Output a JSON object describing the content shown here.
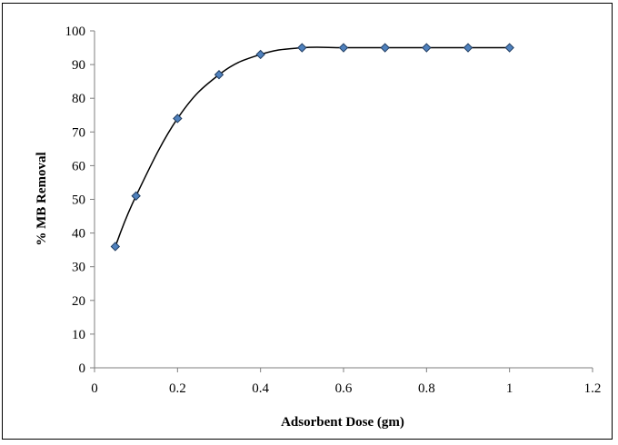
{
  "chart_data": {
    "type": "line",
    "title": "",
    "xlabel": "Adsorbent Dose (gm)",
    "ylabel": "% MB Removal",
    "xlim": [
      0,
      1.2
    ],
    "ylim": [
      0,
      100
    ],
    "x_ticks": [
      0,
      0.2,
      0.4,
      0.6,
      0.8,
      1,
      1.2
    ],
    "x_tick_labels": [
      "0",
      "0.2",
      "0.4",
      "0.6",
      "0.8",
      "1",
      "1.2"
    ],
    "y_ticks": [
      0,
      10,
      20,
      30,
      40,
      50,
      60,
      70,
      80,
      90,
      100
    ],
    "y_tick_labels": [
      "0",
      "10",
      "20",
      "30",
      "40",
      "50",
      "60",
      "70",
      "80",
      "90",
      "100"
    ],
    "grid": false,
    "legend": "none",
    "line_style": "smoothed",
    "marker": "diamond",
    "marker_color": "#4F81BD",
    "line_color": "#000000",
    "series": [
      {
        "x": [
          0.05,
          0.1,
          0.2,
          0.3,
          0.4,
          0.5,
          0.6,
          0.7,
          0.8,
          0.9,
          1.0
        ],
        "y": [
          36,
          51,
          74,
          87,
          93,
          95,
          95,
          95,
          95,
          95,
          95
        ]
      }
    ]
  }
}
